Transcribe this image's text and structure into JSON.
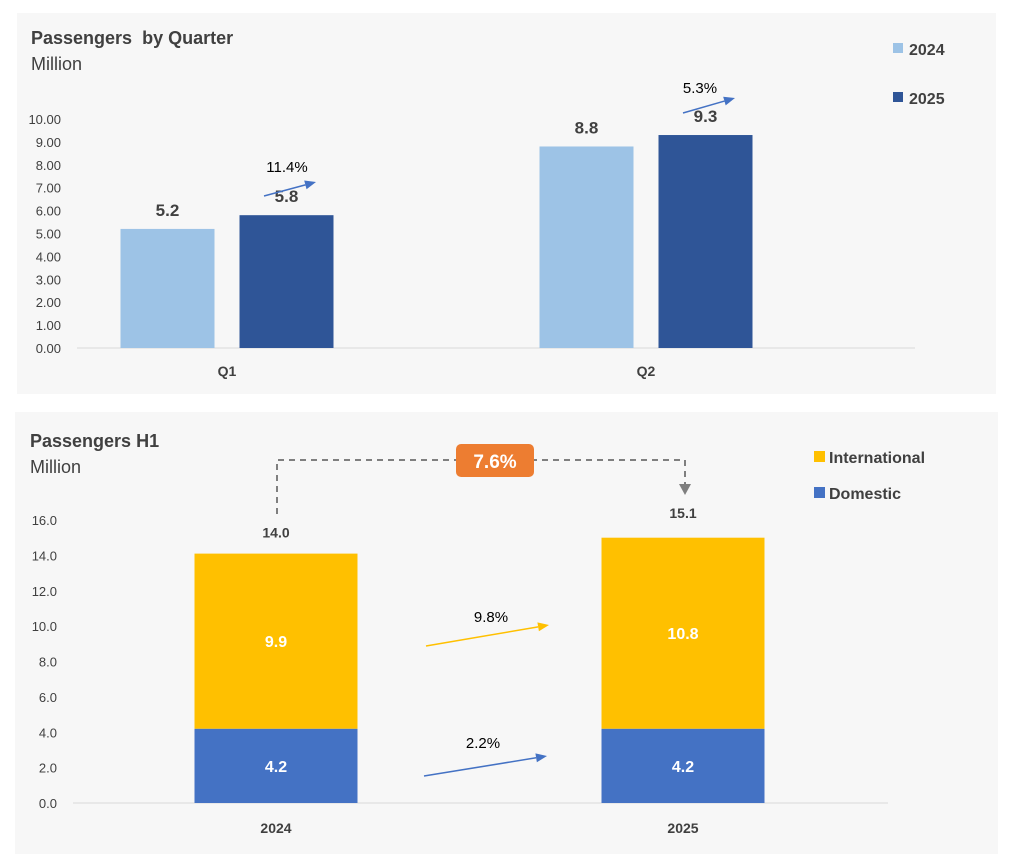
{
  "chart_data": [
    {
      "type": "bar",
      "title": "Passengers  by Quarter",
      "subtitle": "Million",
      "categories": [
        "Q1",
        "Q2"
      ],
      "series": [
        {
          "name": "2024",
          "color": "#9dc3e6",
          "values": [
            5.2,
            8.8
          ],
          "labels": [
            "5.2",
            "8.8"
          ]
        },
        {
          "name": "2025",
          "color": "#2f5597",
          "values": [
            5.8,
            9.3
          ],
          "labels": [
            "5.8",
            "9.3"
          ]
        }
      ],
      "ylim": [
        0,
        10
      ],
      "yticks": [
        "0.00",
        "1.00",
        "2.00",
        "3.00",
        "4.00",
        "5.00",
        "6.00",
        "7.00",
        "8.00",
        "9.00",
        "10.00"
      ],
      "growth": [
        {
          "category": "Q1",
          "label": "11.4%"
        },
        {
          "category": "Q2",
          "label": "5.3%"
        }
      ],
      "legend": [
        "2024",
        "2025"
      ],
      "legend_position": "top-right"
    },
    {
      "type": "stacked-bar",
      "title": "Passengers H1",
      "subtitle": "Million",
      "categories": [
        "2024",
        "2025"
      ],
      "series": [
        {
          "name": "Domestic",
          "color": "#4472c4",
          "values": [
            4.2,
            4.2
          ],
          "labels": [
            "4.2",
            "4.2"
          ]
        },
        {
          "name": "International",
          "color": "#ffc000",
          "values": [
            9.9,
            10.8
          ],
          "labels": [
            "9.9",
            "10.8"
          ]
        }
      ],
      "totals": [
        "14.0",
        "15.1"
      ],
      "total_values": [
        14.0,
        15.1
      ],
      "ylim": [
        0,
        16
      ],
      "yticks": [
        "0.0",
        "2.0",
        "4.0",
        "6.0",
        "8.0",
        "10.0",
        "12.0",
        "14.0",
        "16.0"
      ],
      "total_growth": "7.6%",
      "badge_color": "#ed7d31",
      "series_growth": [
        {
          "series": "International",
          "label": "9.8%",
          "color": "#ffc000"
        },
        {
          "series": "Domestic",
          "label": "2.2%",
          "color": "#4472c4"
        }
      ],
      "legend": [
        "International",
        "Domestic"
      ],
      "legend_position": "top-right"
    }
  ]
}
